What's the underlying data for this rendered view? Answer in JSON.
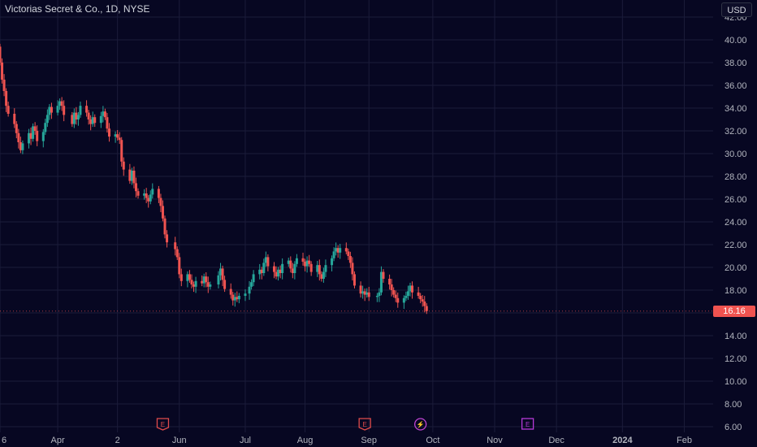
{
  "header": {
    "symbol_title": "Victorias Secret & Co., 1D, NYSE",
    "currency": "USD"
  },
  "last_price": {
    "label": "16.16",
    "value": 16.16,
    "color": "#f05350"
  },
  "colors": {
    "background": "#070722",
    "grid": "#1b1c3a",
    "up": "#26a69a",
    "down": "#ef5350",
    "earnings": "#e04b4b",
    "dividend": "#b63ad8",
    "split": "#c044d4"
  },
  "events": [
    {
      "type": "earnings",
      "label": "E",
      "date": "2023-05-24",
      "color": "#e04b4b"
    },
    {
      "type": "earnings",
      "label": "E",
      "date": "2023-08-30",
      "color": "#e04b4b"
    },
    {
      "type": "split",
      "label": "⚡",
      "date": "2023-09-26",
      "color": "#c044d4"
    },
    {
      "type": "earnings",
      "label": "E",
      "date": "2023-11-17",
      "color": "#b63ad8"
    }
  ],
  "chart_data": {
    "type": "candlestick",
    "title": "Victorias Secret & Co., 1D, NYSE",
    "y_axis_side": "right",
    "ylim": [
      5.5,
      43.5
    ],
    "y_ticks": [
      "42.00",
      "40.00",
      "38.00",
      "36.00",
      "34.00",
      "32.00",
      "30.00",
      "28.00",
      "26.00",
      "24.00",
      "22.00",
      "20.00",
      "18.00",
      "16.00",
      "14.00",
      "12.00",
      "10.00",
      "8.00",
      "6.00"
    ],
    "x_ticks": [
      {
        "label": "6",
        "date": "2023-03-06",
        "bold": false
      },
      {
        "label": "Apr",
        "date": "2023-04-03",
        "bold": false
      },
      {
        "label": "2",
        "date": "2023-05-02",
        "bold": false
      },
      {
        "label": "Jun",
        "date": "2023-06-01",
        "bold": false
      },
      {
        "label": "Jul",
        "date": "2023-07-03",
        "bold": false
      },
      {
        "label": "Aug",
        "date": "2023-08-01",
        "bold": false
      },
      {
        "label": "Sep",
        "date": "2023-09-01",
        "bold": false
      },
      {
        "label": "Oct",
        "date": "2023-10-02",
        "bold": false
      },
      {
        "label": "Nov",
        "date": "2023-11-01",
        "bold": false
      },
      {
        "label": "Dec",
        "date": "2023-12-01",
        "bold": false
      },
      {
        "label": "2024",
        "date": "2024-01-02",
        "bold": true
      },
      {
        "label": "Feb",
        "date": "2024-02-01",
        "bold": false
      }
    ],
    "x_range": [
      "2023-03-06",
      "2024-02-15"
    ],
    "grid": true,
    "close_series": [
      [
        "2023-03-06",
        38.0
      ],
      [
        "2023-03-07",
        36.5
      ],
      [
        "2023-03-08",
        35.5
      ],
      [
        "2023-03-09",
        34.2
      ],
      [
        "2023-03-10",
        33.5
      ],
      [
        "2023-03-13",
        32.6
      ],
      [
        "2023-03-14",
        31.8
      ],
      [
        "2023-03-15",
        31.0
      ],
      [
        "2023-03-16",
        30.3
      ],
      [
        "2023-03-17",
        30.9
      ],
      [
        "2023-03-20",
        31.8
      ],
      [
        "2023-03-21",
        31.3
      ],
      [
        "2023-03-22",
        32.4
      ],
      [
        "2023-03-23",
        32.0
      ],
      [
        "2023-03-24",
        31.1
      ],
      [
        "2023-03-27",
        31.9
      ],
      [
        "2023-03-28",
        32.7
      ],
      [
        "2023-03-29",
        33.4
      ],
      [
        "2023-03-30",
        34.1
      ],
      [
        "2023-03-31",
        33.6
      ],
      [
        "2023-04-03",
        34.2
      ],
      [
        "2023-04-04",
        34.6
      ],
      [
        "2023-04-05",
        34.2
      ],
      [
        "2023-04-06",
        33.4
      ],
      [
        "2023-04-10",
        32.6
      ],
      [
        "2023-04-11",
        33.6
      ],
      [
        "2023-04-12",
        33.0
      ],
      [
        "2023-04-13",
        33.4
      ],
      [
        "2023-04-14",
        34.2
      ],
      [
        "2023-04-17",
        33.6
      ],
      [
        "2023-04-18",
        33.0
      ],
      [
        "2023-04-19",
        32.6
      ],
      [
        "2023-04-20",
        33.2
      ],
      [
        "2023-04-21",
        32.7
      ],
      [
        "2023-04-24",
        33.3
      ],
      [
        "2023-04-25",
        33.7
      ],
      [
        "2023-04-26",
        33.2
      ],
      [
        "2023-04-27",
        32.2
      ],
      [
        "2023-04-28",
        31.5
      ],
      [
        "2023-05-01",
        31.7
      ],
      [
        "2023-05-02",
        31.4
      ],
      [
        "2023-05-03",
        31.2
      ],
      [
        "2023-05-04",
        29.3
      ],
      [
        "2023-05-05",
        28.6
      ],
      [
        "2023-05-08",
        27.6
      ],
      [
        "2023-05-09",
        28.5
      ],
      [
        "2023-05-10",
        27.4
      ],
      [
        "2023-05-11",
        26.7
      ],
      [
        "2023-05-12",
        26.3
      ],
      [
        "2023-05-15",
        26.5
      ],
      [
        "2023-05-16",
        26.1
      ],
      [
        "2023-05-17",
        25.8
      ],
      [
        "2023-05-18",
        26.4
      ],
      [
        "2023-05-19",
        26.9
      ],
      [
        "2023-05-22",
        26.1
      ],
      [
        "2023-05-23",
        25.4
      ],
      [
        "2023-05-24",
        24.3
      ],
      [
        "2023-05-25",
        22.9
      ],
      [
        "2023-05-26",
        22.2
      ],
      [
        "2023-05-30",
        21.6
      ],
      [
        "2023-05-31",
        20.9
      ],
      [
        "2023-06-01",
        19.4
      ],
      [
        "2023-06-02",
        18.8
      ],
      [
        "2023-06-05",
        19.4
      ],
      [
        "2023-06-06",
        18.9
      ],
      [
        "2023-06-07",
        18.5
      ],
      [
        "2023-06-08",
        18.3
      ],
      [
        "2023-06-09",
        18.8
      ],
      [
        "2023-06-12",
        18.6
      ],
      [
        "2023-06-13",
        19.2
      ],
      [
        "2023-06-14",
        18.7
      ],
      [
        "2023-06-15",
        18.3
      ],
      [
        "2023-06-16",
        18.5
      ],
      [
        "2023-06-20",
        19.3
      ],
      [
        "2023-06-21",
        19.9
      ],
      [
        "2023-06-22",
        18.9
      ],
      [
        "2023-06-23",
        18.1
      ],
      [
        "2023-06-26",
        17.6
      ],
      [
        "2023-06-27",
        17.1
      ],
      [
        "2023-06-28",
        17.4
      ],
      [
        "2023-06-29",
        17.2
      ],
      [
        "2023-06-30",
        17.5
      ],
      [
        "2023-07-03",
        17.7
      ],
      [
        "2023-07-05",
        18.3
      ],
      [
        "2023-07-06",
        18.7
      ],
      [
        "2023-07-07",
        19.4
      ],
      [
        "2023-07-10",
        19.8
      ],
      [
        "2023-07-11",
        19.5
      ],
      [
        "2023-07-12",
        20.4
      ],
      [
        "2023-07-13",
        20.9
      ],
      [
        "2023-07-14",
        20.1
      ],
      [
        "2023-07-17",
        19.6
      ],
      [
        "2023-07-18",
        19.2
      ],
      [
        "2023-07-19",
        19.8
      ],
      [
        "2023-07-20",
        19.5
      ],
      [
        "2023-07-21",
        20.3
      ],
      [
        "2023-07-24",
        20.6
      ],
      [
        "2023-07-25",
        19.9
      ],
      [
        "2023-07-26",
        19.5
      ],
      [
        "2023-07-27",
        20.3
      ],
      [
        "2023-07-28",
        20.8
      ],
      [
        "2023-07-31",
        20.5
      ],
      [
        "2023-08-01",
        20.1
      ],
      [
        "2023-08-02",
        20.6
      ],
      [
        "2023-08-03",
        20.3
      ],
      [
        "2023-08-04",
        19.6
      ],
      [
        "2023-08-07",
        20.2
      ],
      [
        "2023-08-08",
        19.4
      ],
      [
        "2023-08-09",
        19.0
      ],
      [
        "2023-08-10",
        19.6
      ],
      [
        "2023-08-11",
        20.2
      ],
      [
        "2023-08-14",
        20.8
      ],
      [
        "2023-08-15",
        21.4
      ],
      [
        "2023-08-16",
        21.7
      ],
      [
        "2023-08-17",
        21.3
      ],
      [
        "2023-08-18",
        21.7
      ],
      [
        "2023-08-21",
        21.4
      ],
      [
        "2023-08-22",
        21.0
      ],
      [
        "2023-08-23",
        20.4
      ],
      [
        "2023-08-24",
        19.4
      ],
      [
        "2023-08-25",
        18.4
      ],
      [
        "2023-08-28",
        17.7
      ],
      [
        "2023-08-29",
        17.9
      ],
      [
        "2023-08-30",
        17.6
      ],
      [
        "2023-08-31",
        17.8
      ],
      [
        "2023-09-01",
        17.4
      ],
      [
        "2023-09-05",
        17.5
      ],
      [
        "2023-09-06",
        17.8
      ],
      [
        "2023-09-07",
        19.6
      ],
      [
        "2023-09-08",
        19.0
      ],
      [
        "2023-09-11",
        18.5
      ],
      [
        "2023-09-12",
        18.0
      ],
      [
        "2023-09-13",
        17.6
      ],
      [
        "2023-09-14",
        17.3
      ],
      [
        "2023-09-15",
        16.9
      ],
      [
        "2023-09-18",
        17.3
      ],
      [
        "2023-09-19",
        17.5
      ],
      [
        "2023-09-20",
        17.9
      ],
      [
        "2023-09-21",
        18.4
      ],
      [
        "2023-09-22",
        17.8
      ],
      [
        "2023-09-25",
        17.5
      ],
      [
        "2023-09-26",
        17.2
      ],
      [
        "2023-09-27",
        17.0
      ],
      [
        "2023-09-28",
        16.6
      ],
      [
        "2023-09-29",
        16.16
      ]
    ]
  }
}
